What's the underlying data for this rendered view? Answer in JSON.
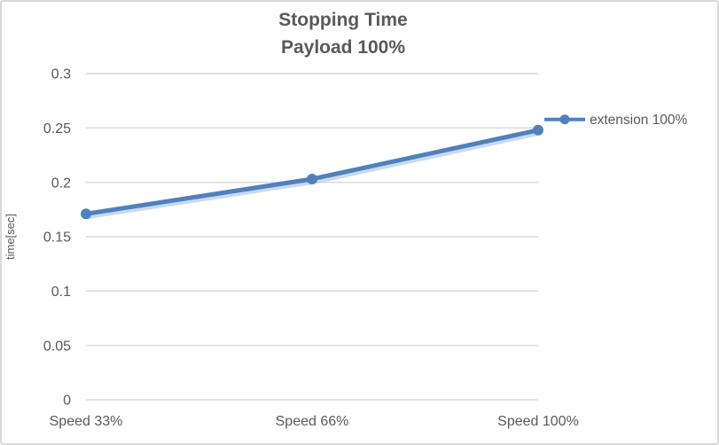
{
  "chart_data": {
    "type": "line",
    "title": "Stopping Time",
    "subtitle": "Payload 100%",
    "categories": [
      "Speed 33%",
      "Speed 66%",
      "Speed 100%"
    ],
    "series": [
      {
        "name": "extension 100%",
        "values": [
          0.171,
          0.203,
          0.248
        ],
        "color": "#4F81BD",
        "marker": "circle"
      }
    ],
    "xlabel": "",
    "ylabel": "time[sec]",
    "ylim": [
      0,
      0.3
    ],
    "yticks": [
      0,
      0.05,
      0.1,
      0.15,
      0.2,
      0.25,
      0.3
    ],
    "ytick_labels": [
      "0",
      "0.05",
      "0.1",
      "0.15",
      "0.2",
      "0.25",
      "0.3"
    ],
    "grid": true,
    "legend_position": "right-of-last-point",
    "colors": {
      "text": "#595959",
      "gridline": "#D9D9D9",
      "axis_line": "#D9D9D9",
      "series_shadow": "#A9C2E1"
    }
  }
}
